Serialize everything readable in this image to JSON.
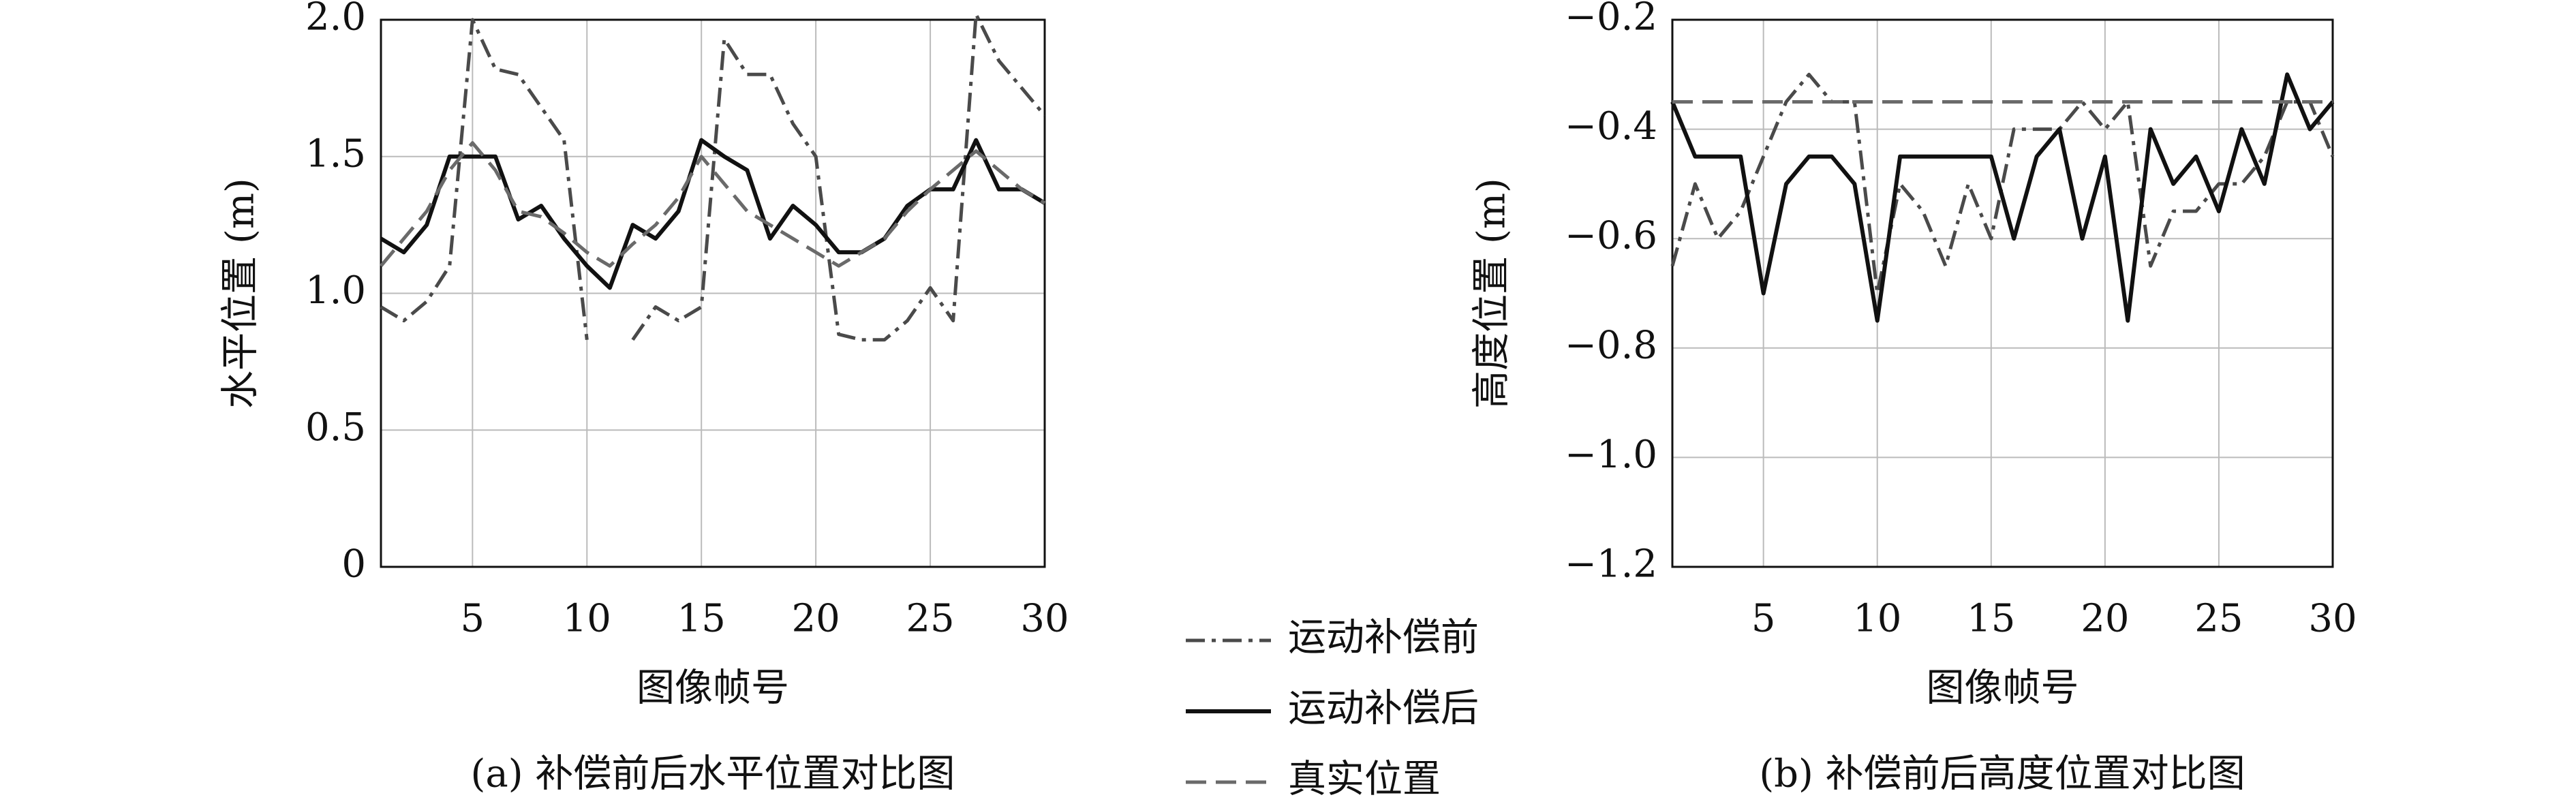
{
  "chart_data": [
    {
      "type": "line",
      "caption": "(a) 补偿前后水平位置对比图",
      "xlabel": "图像帧号",
      "ylabel": "水平位置 (m)",
      "x": [
        1,
        2,
        3,
        4,
        5,
        6,
        7,
        8,
        9,
        10,
        11,
        12,
        13,
        14,
        15,
        16,
        17,
        18,
        19,
        20,
        21,
        22,
        23,
        24,
        25,
        26,
        27,
        28,
        29,
        30
      ],
      "xlim": [
        1,
        30
      ],
      "xticks": [
        5,
        10,
        15,
        20,
        25,
        30
      ],
      "ylim": [
        0,
        2
      ],
      "yticks": [
        0,
        0.5,
        {
          "value": 1,
          "label": "1.0"
        },
        1.5,
        {
          "value": 2,
          "label": "2.0"
        }
      ],
      "grid": true,
      "series": [
        {
          "name": "运动补偿前",
          "color": "#4a4a4a",
          "style": "dashdot",
          "values": [
            0.95,
            0.9,
            0.97,
            1.1,
            2.0,
            1.82,
            1.8,
            1.68,
            1.56,
            0.83,
            null,
            0.83,
            0.95,
            0.9,
            0.95,
            1.93,
            1.8,
            1.8,
            1.62,
            1.5,
            0.85,
            0.83,
            0.83,
            0.9,
            1.02,
            0.9,
            2.02,
            1.85,
            1.75,
            1.65
          ]
        },
        {
          "name": "运动补偿后",
          "color": "#111111",
          "style": "solid",
          "values": [
            1.2,
            1.15,
            1.25,
            1.5,
            1.5,
            1.5,
            1.27,
            1.32,
            1.2,
            1.1,
            1.02,
            1.25,
            1.2,
            1.3,
            1.56,
            1.5,
            1.45,
            1.2,
            1.32,
            1.25,
            1.15,
            1.15,
            1.2,
            1.32,
            1.38,
            1.38,
            1.56,
            1.38,
            1.38,
            1.33
          ]
        },
        {
          "name": "真实位置",
          "color": "#6a6a6a",
          "style": "dashed",
          "values": [
            1.1,
            1.2,
            1.3,
            1.45,
            1.55,
            1.45,
            1.3,
            1.28,
            1.22,
            1.15,
            1.1,
            1.18,
            1.25,
            1.35,
            1.5,
            1.4,
            1.3,
            1.25,
            1.2,
            1.15,
            1.1,
            1.15,
            1.2,
            1.3,
            1.38,
            1.45,
            1.52,
            1.45,
            1.38,
            1.33
          ]
        }
      ]
    },
    {
      "type": "line",
      "caption": "(b) 补偿前后高度位置对比图",
      "xlabel": "图像帧号",
      "ylabel": "高度位置 (m)",
      "x": [
        1,
        2,
        3,
        4,
        5,
        6,
        7,
        8,
        9,
        10,
        11,
        12,
        13,
        14,
        15,
        16,
        17,
        18,
        19,
        20,
        21,
        22,
        23,
        24,
        25,
        26,
        27,
        28,
        29,
        30
      ],
      "xlim": [
        1,
        30
      ],
      "xticks": [
        5,
        10,
        15,
        20,
        25,
        30
      ],
      "ylim": [
        -1.2,
        -0.2
      ],
      "yticks": [
        {
          "value": -1.2,
          "label": "−1.2"
        },
        {
          "value": -1.0,
          "label": "−1.0"
        },
        {
          "value": -0.8,
          "label": "−0.8"
        },
        {
          "value": -0.6,
          "label": "−0.6"
        },
        {
          "value": -0.4,
          "label": "−0.4"
        },
        {
          "value": -0.2,
          "label": "−0.2"
        }
      ],
      "grid": true,
      "series": [
        {
          "color": "#4a4a4a",
          "style": "dashdot",
          "values": [
            -0.65,
            -0.5,
            -0.6,
            -0.55,
            -0.45,
            -0.35,
            -0.3,
            -0.35,
            -0.35,
            -0.7,
            -0.5,
            -0.55,
            -0.65,
            -0.5,
            -0.6,
            -0.4,
            -0.4,
            -0.4,
            -0.35,
            -0.4,
            -0.35,
            -0.65,
            -0.55,
            -0.55,
            -0.5,
            -0.5,
            -0.45,
            -0.35,
            -0.35,
            -0.45
          ]
        },
        {
          "color": "#111111",
          "style": "solid",
          "values": [
            -0.35,
            -0.45,
            -0.45,
            -0.45,
            -0.7,
            -0.5,
            -0.45,
            -0.45,
            -0.5,
            -0.75,
            -0.45,
            -0.45,
            -0.45,
            -0.45,
            -0.45,
            -0.6,
            -0.45,
            -0.4,
            -0.6,
            -0.45,
            -0.75,
            -0.4,
            -0.5,
            -0.45,
            -0.55,
            -0.4,
            -0.5,
            -0.3,
            -0.4,
            -0.35
          ]
        },
        {
          "color": "#6a6a6a",
          "style": "dashed",
          "values": [
            -0.35,
            -0.35,
            -0.35,
            -0.35,
            -0.35,
            -0.35,
            -0.35,
            -0.35,
            -0.35,
            -0.35,
            -0.35,
            -0.35,
            -0.35,
            -0.35,
            -0.35,
            -0.35,
            -0.35,
            -0.35,
            -0.35,
            -0.35,
            -0.35,
            -0.35,
            -0.35,
            -0.35,
            -0.35,
            -0.35,
            -0.35,
            -0.35,
            -0.35,
            -0.35
          ]
        }
      ]
    }
  ]
}
